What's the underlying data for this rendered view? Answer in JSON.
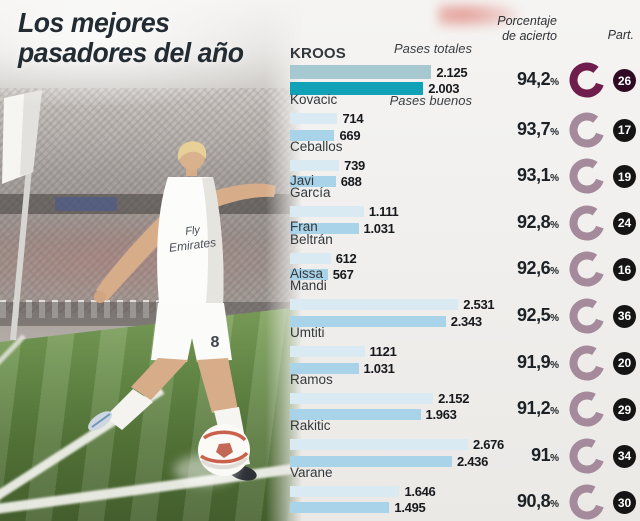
{
  "title": {
    "line1": "Los mejores",
    "line2": "pasadores del año"
  },
  "header": {
    "pct_line1": "Porcentaje",
    "pct_line2": "de acierto",
    "part": "Part."
  },
  "legend": {
    "total": "Pases totales",
    "good": "Pases buenos"
  },
  "unit": "%",
  "photo": {
    "sponsor_line1": "Fly",
    "sponsor_line2": "Emirates",
    "shirt_number": "8"
  },
  "colors": {
    "text_dark": "#232b33",
    "bar_total": "#d9eaf3",
    "bar_good": "#a9d3e9",
    "bar_total_hl": "#a6c8d0",
    "bar_good_hl": "#12a2b8",
    "ring": "#a58a9b",
    "ring_hl": "#6e1d4c",
    "badge_bg": "#151515",
    "badge_hl_bg": "#2f0b24"
  },
  "chart_data": {
    "type": "bar",
    "title": "Los mejores pasadores del año",
    "series_labels": [
      "Pases totales",
      "Pases buenos"
    ],
    "value_axis": {
      "min": 0,
      "max": 2700,
      "grid": false
    },
    "pct_column_header": "Porcentaje de acierto",
    "matches_column_header": "Part.",
    "players": [
      {
        "name_lines": [
          "KROOS"
        ],
        "total_display": "2.125",
        "total": 2125,
        "good_display": "2.003",
        "good": 2003,
        "pct_display": "94,2",
        "pct": 94.2,
        "matches": "26",
        "highlight": true
      },
      {
        "name_lines": [
          "Kovacic"
        ],
        "total_display": "714",
        "total": 714,
        "good_display": "669",
        "good": 669,
        "pct_display": "93,7",
        "pct": 93.7,
        "matches": "17",
        "highlight": false
      },
      {
        "name_lines": [
          "Ceballos"
        ],
        "total_display": "739",
        "total": 739,
        "good_display": "688",
        "good": 688,
        "pct_display": "93,1",
        "pct": 93.1,
        "matches": "19",
        "highlight": false
      },
      {
        "name_lines": [
          "Javi",
          "García"
        ],
        "total_display": "1.111",
        "total": 1111,
        "good_display": "1.031",
        "good": 1031,
        "pct_display": "92,8",
        "pct": 92.8,
        "matches": "24",
        "highlight": false
      },
      {
        "name_lines": [
          "Fran",
          "Beltrán"
        ],
        "total_display": "612",
        "total": 612,
        "good_display": "567",
        "good": 567,
        "pct_display": "92,6",
        "pct": 92.6,
        "matches": "16",
        "highlight": false
      },
      {
        "name_lines": [
          "Aissa",
          "Mandi"
        ],
        "total_display": "2.531",
        "total": 2531,
        "good_display": "2.343",
        "good": 2343,
        "pct_display": "92,5",
        "pct": 92.5,
        "matches": "36",
        "highlight": false
      },
      {
        "name_lines": [
          "Umtiti"
        ],
        "total_display": "1121",
        "total": 1121,
        "good_display": "1.031",
        "good": 1031,
        "pct_display": "91,9",
        "pct": 91.9,
        "matches": "20",
        "highlight": false
      },
      {
        "name_lines": [
          "Ramos"
        ],
        "total_display": "2.152",
        "total": 2152,
        "good_display": "1.963",
        "good": 1963,
        "pct_display": "91,2",
        "pct": 91.2,
        "matches": "29",
        "highlight": false
      },
      {
        "name_lines": [
          "Rakitic"
        ],
        "total_display": "2.676",
        "total": 2676,
        "good_display": "2.436",
        "good": 2436,
        "pct_display": "91",
        "pct": 91.0,
        "matches": "34",
        "highlight": false
      },
      {
        "name_lines": [
          "Varane"
        ],
        "total_display": "1.646",
        "total": 1646,
        "good_display": "1.495",
        "good": 1495,
        "pct_display": "90,8",
        "pct": 90.8,
        "matches": "30",
        "highlight": false
      }
    ]
  }
}
